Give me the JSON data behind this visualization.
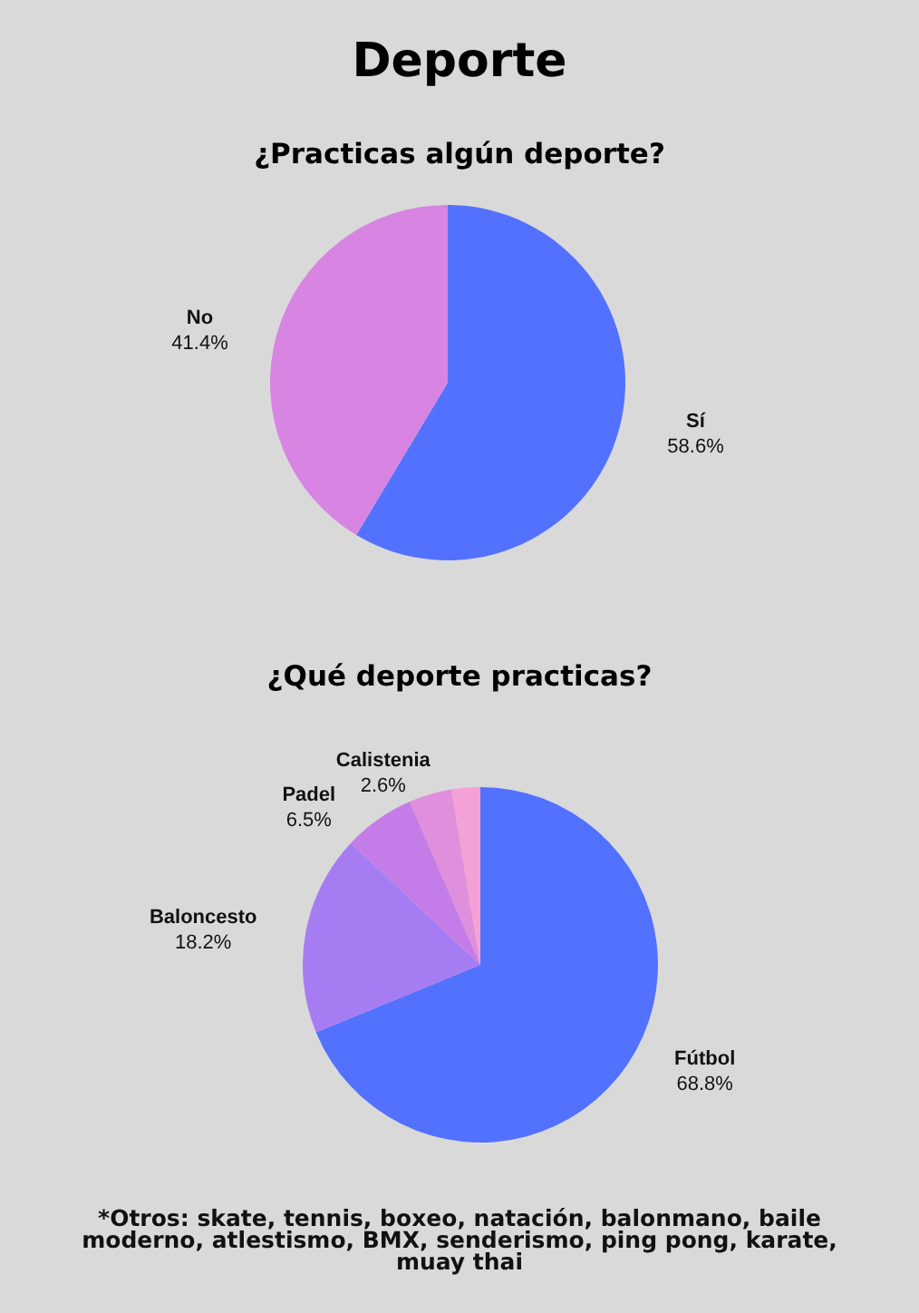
{
  "chart_data": [
    {
      "type": "pie",
      "title": "Deporte",
      "subtitle": "¿Practicas algún deporte?",
      "categories": [
        "Sí",
        "No"
      ],
      "values": [
        58.6,
        41.4
      ],
      "colors": [
        "#5271ff",
        "#d784e3"
      ],
      "value_labels": [
        "58.6%",
        "41.4%"
      ]
    },
    {
      "type": "pie",
      "title": "¿Qué deporte practicas?",
      "categories": [
        "Fútbol",
        "Baloncesto",
        "Padel",
        null,
        "Calistenia"
      ],
      "values": [
        68.8,
        18.2,
        6.5,
        3.9,
        2.6
      ],
      "colors": [
        "#5271ff",
        "#a67cf2",
        "#c47de8",
        "#e08fdc",
        "#f4a1d6"
      ],
      "value_labels": [
        "68.8%",
        "18.2%",
        "6.5%",
        null,
        "2.6%"
      ],
      "annotations": [
        "*Otros: skate, tennis, boxeo, natación, balonmano, baile moderno, atlestismo, BMX, senderismo, ping pong, karate, muay thai"
      ]
    }
  ]
}
